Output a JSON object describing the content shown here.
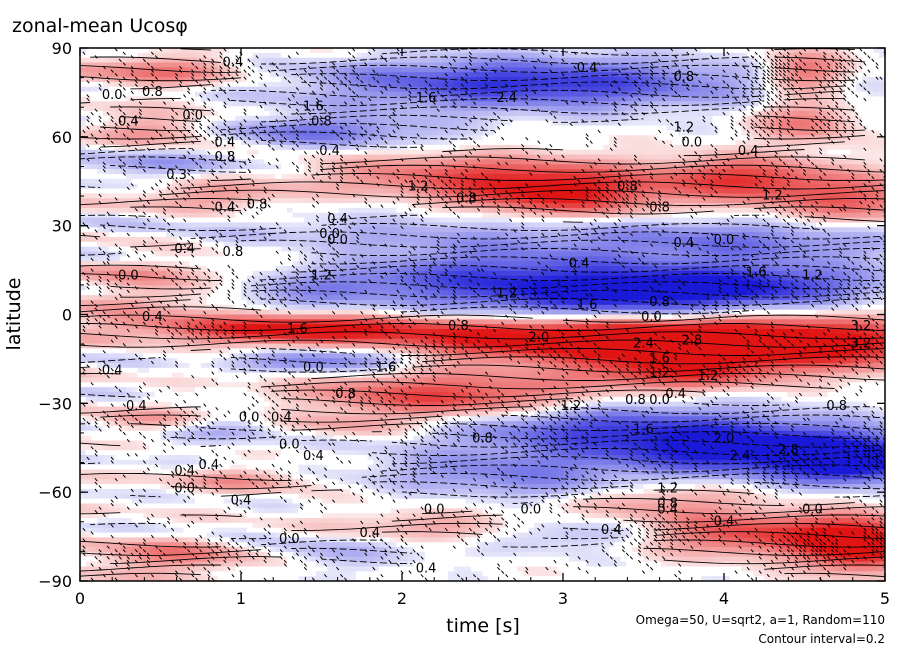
{
  "chart_data": {
    "type": "heatmap",
    "title": "zonal-mean Ucosφ",
    "xlabel": "time [s]",
    "ylabel": "latitude",
    "xlim": [
      0,
      5
    ],
    "ylim": [
      -90,
      90
    ],
    "x_ticks": [
      0,
      1,
      2,
      3,
      4,
      5
    ],
    "x_tick_labels": [
      "0",
      "1",
      "2",
      "3",
      "4",
      "5"
    ],
    "y_ticks": [
      90,
      60,
      30,
      0,
      -30,
      -60,
      -90
    ],
    "y_tick_labels": [
      "90",
      "60",
      "30",
      "0",
      "−30",
      "−60",
      "−90"
    ],
    "grid": false,
    "colormap": {
      "negative": "#1f1fd9",
      "zero": "#ffffff",
      "positive": "#e01818"
    },
    "contour_interval": 0.2,
    "annotations": [
      "Omega=50, U=sqrt2, a=1, Random=110",
      "Contour interval=0.2"
    ],
    "contour_labels": [
      {
        "x": 0.95,
        "y": 85,
        "text": "0.4"
      },
      {
        "x": 0.45,
        "y": 75,
        "text": "0.8"
      },
      {
        "x": 0.2,
        "y": 74,
        "text": "0.0"
      },
      {
        "x": 0.7,
        "y": 67,
        "text": "0.0"
      },
      {
        "x": 0.3,
        "y": 65,
        "text": "0.4"
      },
      {
        "x": 1.45,
        "y": 70,
        "text": "1.6"
      },
      {
        "x": 2.15,
        "y": 73,
        "text": "1.6"
      },
      {
        "x": 2.65,
        "y": 73,
        "text": "2.4"
      },
      {
        "x": 3.15,
        "y": 83,
        "text": "0.4"
      },
      {
        "x": 3.75,
        "y": 80,
        "text": "0.8"
      },
      {
        "x": 3.75,
        "y": 63,
        "text": "1.2"
      },
      {
        "x": 3.8,
        "y": 58,
        "text": "0.0"
      },
      {
        "x": 4.15,
        "y": 55,
        "text": "0.4"
      },
      {
        "x": 1.5,
        "y": 65,
        "text": "0.8"
      },
      {
        "x": 0.9,
        "y": 58,
        "text": "0.4"
      },
      {
        "x": 0.9,
        "y": 53,
        "text": "0.8"
      },
      {
        "x": 1.55,
        "y": 55,
        "text": "0.4"
      },
      {
        "x": 0.6,
        "y": 47,
        "text": "0.3"
      },
      {
        "x": 2.1,
        "y": 43,
        "text": "1.2"
      },
      {
        "x": 2.4,
        "y": 39,
        "text": "0.8"
      },
      {
        "x": 3.4,
        "y": 43,
        "text": "0.8"
      },
      {
        "x": 3.6,
        "y": 36,
        "text": "0.8"
      },
      {
        "x": 4.3,
        "y": 40,
        "text": "1.2"
      },
      {
        "x": 1.1,
        "y": 37,
        "text": "0.8"
      },
      {
        "x": 0.9,
        "y": 36,
        "text": "0.4"
      },
      {
        "x": 1.6,
        "y": 32,
        "text": "0.4"
      },
      {
        "x": 1.55,
        "y": 27,
        "text": "0.0"
      },
      {
        "x": 1.6,
        "y": 25,
        "text": "0.0"
      },
      {
        "x": 0.65,
        "y": 22,
        "text": "0.4"
      },
      {
        "x": 0.95,
        "y": 21,
        "text": "0.8"
      },
      {
        "x": 3.75,
        "y": 24,
        "text": "0.4"
      },
      {
        "x": 4.0,
        "y": 25,
        "text": "0.0"
      },
      {
        "x": 3.1,
        "y": 17,
        "text": "0.4"
      },
      {
        "x": 4.2,
        "y": 14,
        "text": "1.6"
      },
      {
        "x": 4.55,
        "y": 13,
        "text": "1.2"
      },
      {
        "x": 1.5,
        "y": 13,
        "text": "1.2"
      },
      {
        "x": 0.3,
        "y": 13,
        "text": "0.0"
      },
      {
        "x": 2.65,
        "y": 7,
        "text": "1.2"
      },
      {
        "x": 3.15,
        "y": 3,
        "text": "1.6"
      },
      {
        "x": 3.6,
        "y": 4,
        "text": "0.8"
      },
      {
        "x": 3.55,
        "y": -1,
        "text": "0.0"
      },
      {
        "x": 0.45,
        "y": -1,
        "text": "0.4"
      },
      {
        "x": 1.35,
        "y": -5,
        "text": "1.6"
      },
      {
        "x": 2.35,
        "y": -4,
        "text": "0.8"
      },
      {
        "x": 2.85,
        "y": -8,
        "text": "2.0"
      },
      {
        "x": 3.5,
        "y": -10,
        "text": "2.4"
      },
      {
        "x": 3.8,
        "y": -9,
        "text": "2.8"
      },
      {
        "x": 4.85,
        "y": -4,
        "text": "3.2"
      },
      {
        "x": 4.85,
        "y": -10,
        "text": "3.2"
      },
      {
        "x": 3.6,
        "y": -15,
        "text": "1.6"
      },
      {
        "x": 1.45,
        "y": -18,
        "text": "0.0"
      },
      {
        "x": 1.9,
        "y": -18,
        "text": "1.6"
      },
      {
        "x": 0.2,
        "y": -19,
        "text": "0.4"
      },
      {
        "x": 3.6,
        "y": -20,
        "text": "1.2"
      },
      {
        "x": 3.9,
        "y": -21,
        "text": "1.2"
      },
      {
        "x": 3.7,
        "y": -27,
        "text": "0.4"
      },
      {
        "x": 1.65,
        "y": -27,
        "text": "0.8"
      },
      {
        "x": 3.45,
        "y": -29,
        "text": "0.8"
      },
      {
        "x": 3.6,
        "y": -29,
        "text": "0.0"
      },
      {
        "x": 0.35,
        "y": -31,
        "text": "0.4"
      },
      {
        "x": 3.05,
        "y": -31,
        "text": "1.2"
      },
      {
        "x": 4.7,
        "y": -31,
        "text": "0.8"
      },
      {
        "x": 1.05,
        "y": -35,
        "text": "0.0"
      },
      {
        "x": 1.25,
        "y": -35,
        "text": "0.4"
      },
      {
        "x": 3.5,
        "y": -39,
        "text": "1.6"
      },
      {
        "x": 4.0,
        "y": -42,
        "text": "2.0"
      },
      {
        "x": 2.5,
        "y": -42,
        "text": "0.8"
      },
      {
        "x": 1.3,
        "y": -44,
        "text": "0.0"
      },
      {
        "x": 1.45,
        "y": -48,
        "text": "0.4"
      },
      {
        "x": 4.4,
        "y": -46,
        "text": "2.8"
      },
      {
        "x": 4.1,
        "y": -48,
        "text": "2.4"
      },
      {
        "x": 0.8,
        "y": -51,
        "text": "0.4"
      },
      {
        "x": 0.65,
        "y": -53,
        "text": "0.4"
      },
      {
        "x": 0.65,
        "y": -59,
        "text": "0.0"
      },
      {
        "x": 1.0,
        "y": -63,
        "text": "0.4"
      },
      {
        "x": 3.65,
        "y": -59,
        "text": "1.2"
      },
      {
        "x": 3.65,
        "y": -64,
        "text": "0.8"
      },
      {
        "x": 3.65,
        "y": -66,
        "text": "0.4"
      },
      {
        "x": 2.2,
        "y": -66,
        "text": "0.0"
      },
      {
        "x": 2.8,
        "y": -66,
        "text": "0.0"
      },
      {
        "x": 4.0,
        "y": -70,
        "text": "0.4"
      },
      {
        "x": 4.55,
        "y": -66,
        "text": "0.0"
      },
      {
        "x": 3.3,
        "y": -73,
        "text": "0.4"
      },
      {
        "x": 1.8,
        "y": -74,
        "text": "0.4"
      },
      {
        "x": 1.3,
        "y": -76,
        "text": "0.0"
      },
      {
        "x": 2.15,
        "y": -86,
        "text": "0.4"
      }
    ]
  }
}
